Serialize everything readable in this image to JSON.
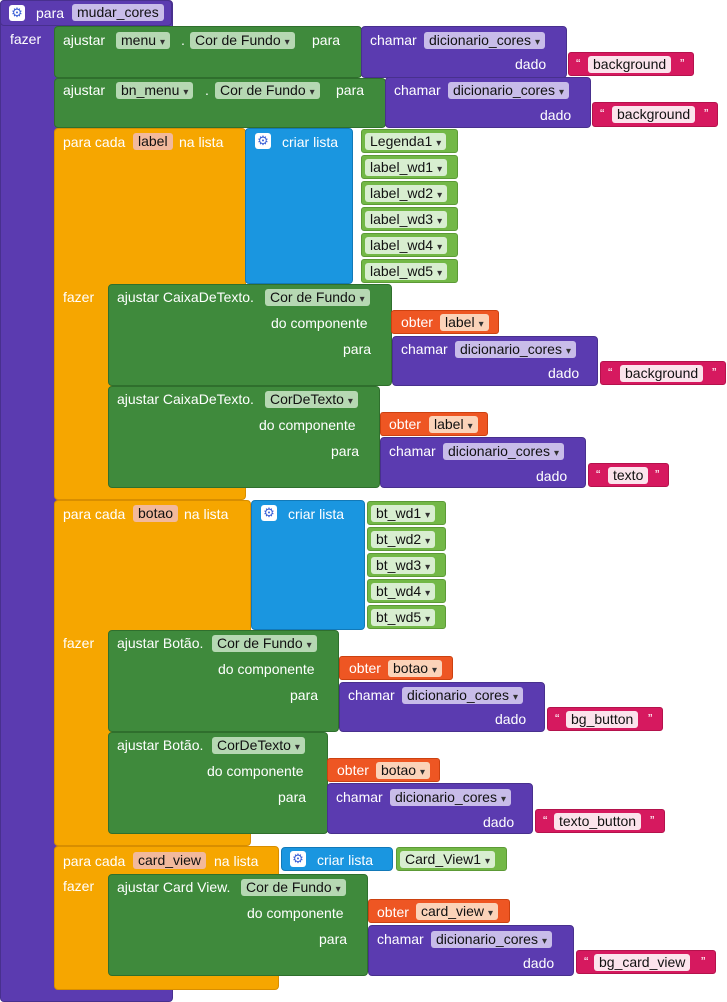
{
  "procedure": {
    "header": "para",
    "name": "mudar_cores",
    "do_label": "fazer"
  },
  "words": {
    "ajustar": "ajustar",
    "para": "para",
    "chamar": "chamar",
    "dado": "dado",
    "para_cada": "para cada",
    "na_lista": "na lista",
    "criar_lista": "criar lista",
    "fazer": "fazer",
    "do_componente": "do componente",
    "obter": "obter",
    "dot": ".",
    "quote_open": "“",
    "quote_close": "”"
  },
  "set1": {
    "component": "menu",
    "property": "Cor de Fundo",
    "function": "dicionario_cores",
    "arg": "background"
  },
  "set2": {
    "component": "bn_menu",
    "property": "Cor de Fundo",
    "function": "dicionario_cores",
    "arg": "background"
  },
  "loop1": {
    "var": "label",
    "items": [
      "Legenda1",
      "label_wd1",
      "label_wd2",
      "label_wd3",
      "label_wd4",
      "label_wd5"
    ],
    "s1": {
      "setter": "ajustar CaixaDeTexto.",
      "property": "Cor de Fundo",
      "function": "dicionario_cores",
      "arg": "background"
    },
    "s2": {
      "setter": "ajustar CaixaDeTexto.",
      "property": "CorDeTexto",
      "function": "dicionario_cores",
      "arg": "texto"
    }
  },
  "loop2": {
    "var": "botao",
    "items": [
      "bt_wd1",
      "bt_wd2",
      "bt_wd3",
      "bt_wd4",
      "bt_wd5"
    ],
    "s1": {
      "setter": "ajustar Botão.",
      "property": "Cor de Fundo",
      "function": "dicionario_cores",
      "arg": "bg_button"
    },
    "s2": {
      "setter": "ajustar Botão.",
      "property": "CorDeTexto",
      "function": "dicionario_cores",
      "arg": "texto_button"
    }
  },
  "loop3": {
    "var": "card_view",
    "items": [
      "Card_View1"
    ],
    "s1": {
      "setter": "ajustar Card View.",
      "property": "Cor de Fundo",
      "function": "dicionario_cores",
      "arg": "bg_card_view"
    }
  },
  "icons": {
    "gear": "gear-icon",
    "dropdown": "chevron-down-icon"
  },
  "colors": {
    "procedure": "#5b3bb0",
    "setter": "#3f8a3c",
    "loop": "#f6a600",
    "list": "#1a96e0",
    "getter": "#ee5623",
    "text": "#d6195f",
    "component": "#73b847"
  }
}
